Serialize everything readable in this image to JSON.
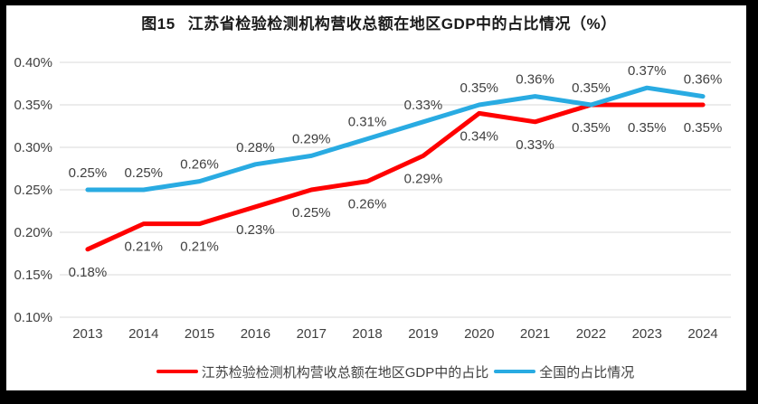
{
  "title": {
    "figure": "图15",
    "text": "江苏省检验检测机构营收总额在地区GDP中的占比情况（%）"
  },
  "chart_data": {
    "type": "line",
    "categories": [
      "2013",
      "2014",
      "2015",
      "2016",
      "2017",
      "2018",
      "2019",
      "2020",
      "2021",
      "2022",
      "2023",
      "2024"
    ],
    "series": [
      {
        "name": "江苏检验检测机构营收总额在地区GDP中的占比",
        "color": "#FF0000",
        "label_position": "below",
        "values": [
          0.18,
          0.21,
          0.21,
          0.23,
          0.25,
          0.26,
          0.29,
          0.34,
          0.33,
          0.35,
          0.35,
          0.35
        ],
        "labels": [
          "0.18%",
          "0.21%",
          "0.21%",
          "0.23%",
          "0.25%",
          "0.26%",
          "0.29%",
          "0.34%",
          "0.33%",
          "0.35%",
          "0.35%",
          "0.35%"
        ]
      },
      {
        "name": "全国的占比情况",
        "color": "#29ABE2",
        "label_position": "above",
        "values": [
          0.25,
          0.25,
          0.26,
          0.28,
          0.29,
          0.31,
          0.33,
          0.35,
          0.36,
          0.35,
          0.37,
          0.36
        ],
        "labels": [
          "0.25%",
          "0.25%",
          "0.26%",
          "0.28%",
          "0.29%",
          "0.31%",
          "0.33%",
          "0.35%",
          "0.36%",
          "0.35%",
          "0.37%",
          "0.36%"
        ]
      }
    ],
    "title": "图15　江苏省检验检测机构营收总额在地区GDP中的占比情况（%）",
    "xlabel": "",
    "ylabel": "",
    "ylim": [
      0.1,
      0.4
    ],
    "ytick_step": 0.05,
    "ytick_labels": [
      "0.10%",
      "0.15%",
      "0.20%",
      "0.25%",
      "0.30%",
      "0.35%",
      "0.40%"
    ],
    "grid": true,
    "gridline_color": "#D9D9D9",
    "data_labels": true,
    "legend_position": "bottom"
  },
  "colors": {
    "frame": "#000000",
    "panel": "#FFFFFF",
    "axis_text": "#404040",
    "title_text": "#1A1A1A"
  }
}
